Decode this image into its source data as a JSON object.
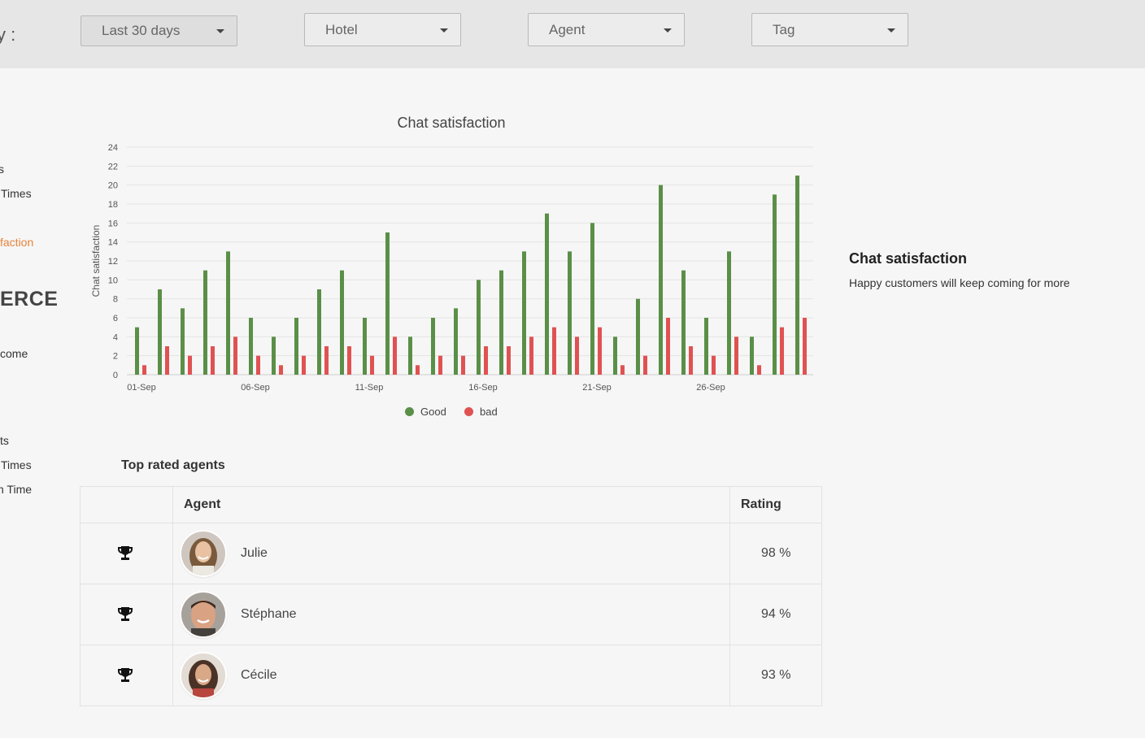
{
  "filters": {
    "label": "y :",
    "period": "Last 30 days",
    "hotel": "Hotel",
    "agent": "Agent",
    "tag": "Tag"
  },
  "sidebar": {
    "items": [
      "s",
      "Times",
      "faction",
      "ERCE",
      "come",
      "ts",
      "Times",
      "n Time"
    ],
    "active_color": "#e8833a"
  },
  "chart_data": {
    "type": "bar",
    "title": "Chat satisfaction",
    "ylabel": "Chat satisfaction",
    "ylim": [
      0,
      24
    ],
    "yticks": [
      0,
      2,
      4,
      6,
      8,
      10,
      12,
      14,
      16,
      18,
      20,
      22,
      24
    ],
    "xtick_labels": [
      "01-Sep",
      "06-Sep",
      "11-Sep",
      "16-Sep",
      "21-Sep",
      "26-Sep"
    ],
    "xtick_every": 5,
    "grid": true,
    "legend_position": "bottom",
    "categories": [
      "01-Sep",
      "02-Sep",
      "03-Sep",
      "04-Sep",
      "05-Sep",
      "06-Sep",
      "07-Sep",
      "08-Sep",
      "09-Sep",
      "10-Sep",
      "11-Sep",
      "12-Sep",
      "13-Sep",
      "14-Sep",
      "15-Sep",
      "16-Sep",
      "17-Sep",
      "18-Sep",
      "19-Sep",
      "20-Sep",
      "21-Sep",
      "22-Sep",
      "23-Sep",
      "24-Sep",
      "25-Sep",
      "26-Sep",
      "27-Sep",
      "28-Sep",
      "29-Sep",
      "30-Sep"
    ],
    "series": [
      {
        "name": "Good",
        "color": "#5a8f47",
        "values": [
          5,
          9,
          7,
          11,
          13,
          6,
          4,
          6,
          9,
          11,
          6,
          15,
          4,
          6,
          7,
          10,
          11,
          13,
          17,
          13,
          16,
          4,
          8,
          20,
          11,
          6,
          13,
          4,
          19,
          21
        ]
      },
      {
        "name": "bad",
        "color": "#e05252",
        "values": [
          1,
          3,
          2,
          3,
          4,
          2,
          1,
          2,
          3,
          3,
          2,
          4,
          1,
          2,
          2,
          3,
          3,
          4,
          5,
          4,
          5,
          1,
          2,
          6,
          3,
          2,
          4,
          1,
          5,
          6
        ]
      }
    ]
  },
  "info": {
    "title": "Chat satisfaction",
    "subtitle": "Happy customers will keep coming for more"
  },
  "top_agents": {
    "title": "Top rated agents",
    "headers": {
      "agent": "Agent",
      "rating": "Rating"
    },
    "rows": [
      {
        "name": "Julie",
        "rating": "98 %",
        "icon": "trophy-icon"
      },
      {
        "name": "Stéphane",
        "rating": "94 %",
        "icon": "trophy-icon"
      },
      {
        "name": "Cécile",
        "rating": "93 %",
        "icon": "trophy-icon"
      }
    ]
  }
}
